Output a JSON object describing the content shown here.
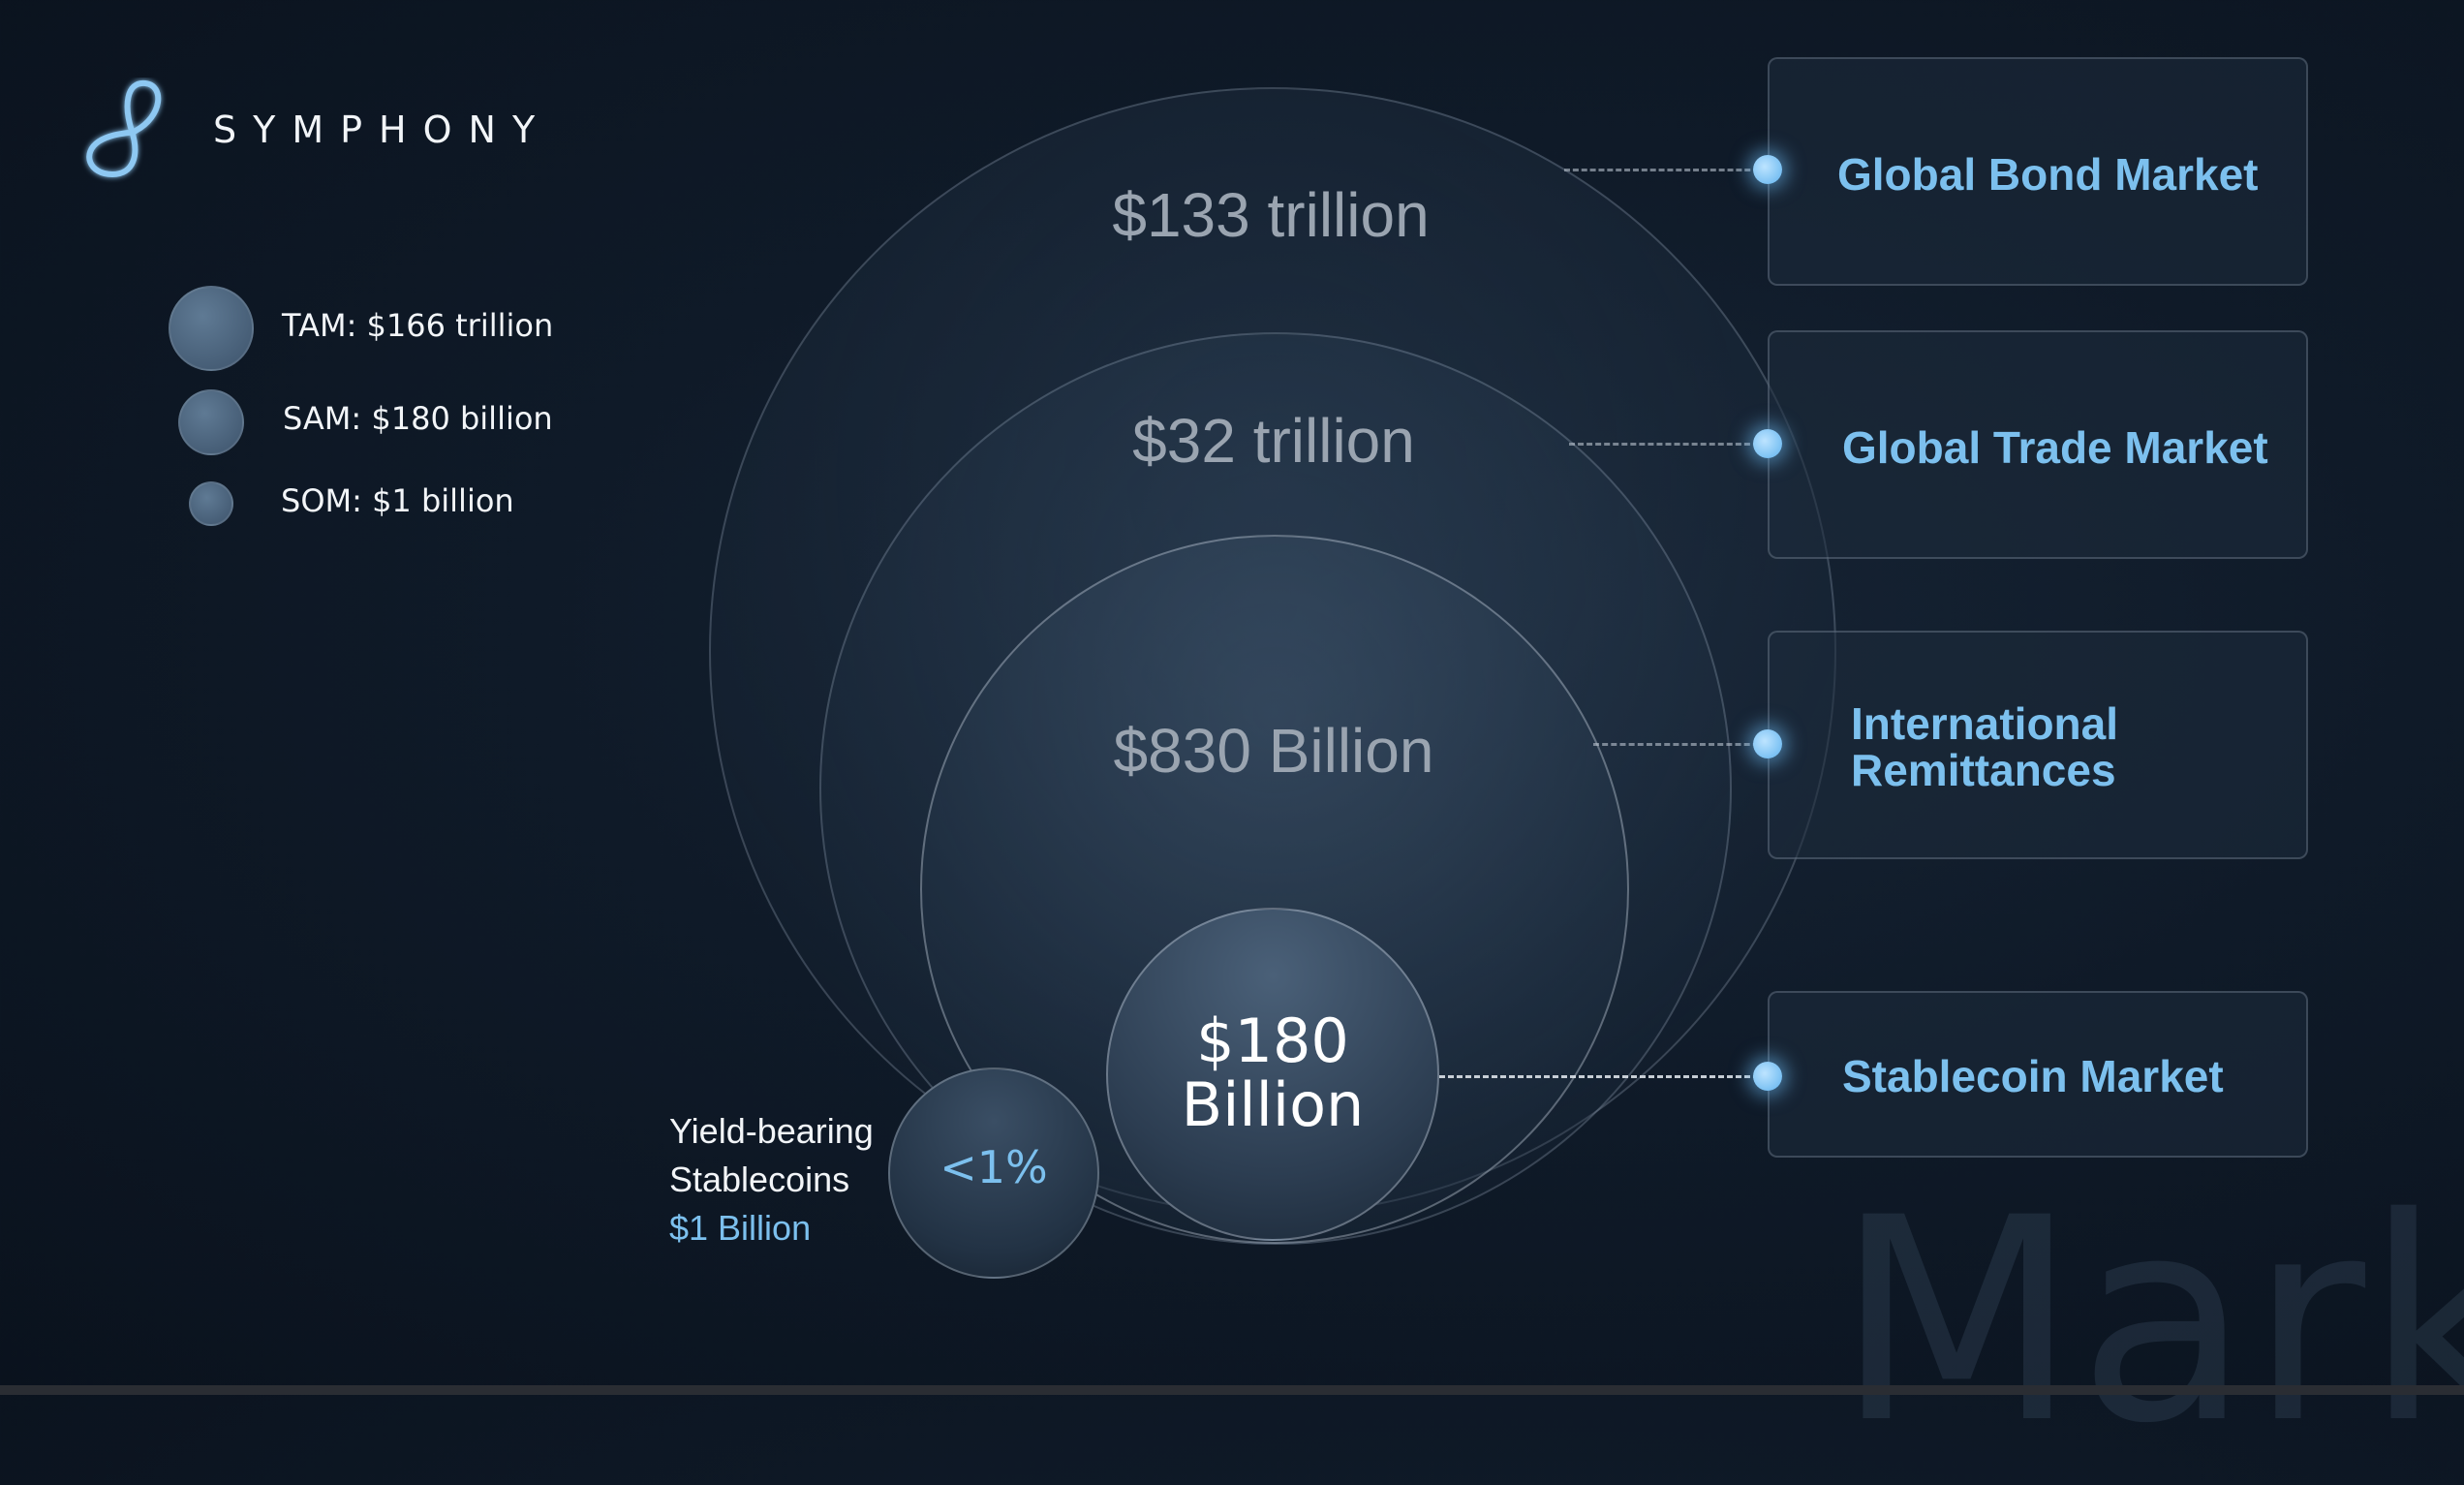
{
  "brand": {
    "name": "SYMPHONY",
    "logo_icon": "infinity-loop-icon"
  },
  "legend": [
    {
      "label": "TAM: $166 trillion"
    },
    {
      "label": "SAM: $180 billion"
    },
    {
      "label": "SOM: $1 billion"
    }
  ],
  "circles": {
    "bond": "$133 trillion",
    "trade": "$32 trillion",
    "remittance": "$830 Billion",
    "stablecoin_line1": "$180",
    "stablecoin_line2": "Billion",
    "yield": "<1%"
  },
  "yield_note": {
    "line1": "Yield-bearing",
    "line2": "Stablecoins",
    "value": "$1 Billion"
  },
  "markets": {
    "bond": "Global Bond Market",
    "trade": "Global Trade Market",
    "remittance_line1": "International",
    "remittance_line2": "Remittances",
    "stablecoin": "Stablecoin Market"
  },
  "watermark": "Market",
  "colors": {
    "accent": "#7cc0ee",
    "background": "#0f1a28",
    "muted_label": "#9aa4b0"
  }
}
